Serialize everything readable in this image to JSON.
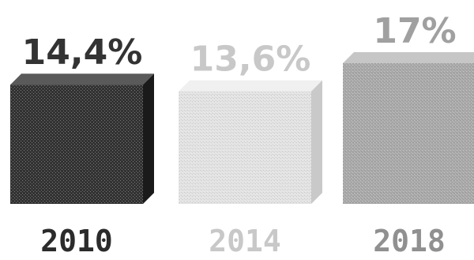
{
  "chart_data": {
    "type": "bar",
    "style": "3d-dotted",
    "categories": [
      "2010",
      "2014",
      "2018"
    ],
    "values": [
      14.4,
      13.6,
      17
    ],
    "value_labels": [
      "14,4%",
      "13,6%",
      "17%"
    ],
    "unit": "%",
    "title": "",
    "xlabel": "",
    "ylabel": "",
    "ylim": [
      0,
      17
    ],
    "grid": false,
    "legend": "none",
    "colors": {
      "bars": [
        "#333333",
        "#e3e3e3",
        "#a9a9a9"
      ],
      "bar_sides": [
        "#1a1a1a",
        "#c9c9c9",
        "#8e8e8e"
      ],
      "bar_tops": [
        "#5a5a5a",
        "#f0f0f0",
        "#c6c6c6"
      ],
      "value_labels": [
        "#333333",
        "#c8c8c8",
        "#a0a0a0"
      ],
      "year_labels": [
        "#2b2b2b",
        "#c8c8c8",
        "#909090"
      ]
    }
  }
}
